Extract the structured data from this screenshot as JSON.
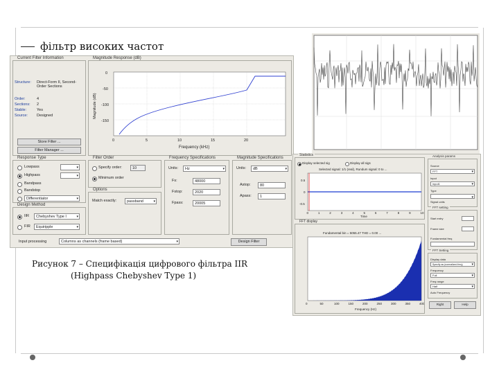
{
  "slide": {
    "title": "фільтр високих частот",
    "caption_line1": "Рисунок 7 – Специфікація цифрового фільтра IIR",
    "caption_line2": "(Highpass Chebyshev Type 1)"
  },
  "fdatool": {
    "current_filter": {
      "title": "Current Filter Information",
      "rows": [
        {
          "key": "Structure:",
          "value": "Direct-Form II, Second-Order Sections"
        },
        {
          "key": "Order:",
          "value": "4"
        },
        {
          "key": "Sections:",
          "value": "2"
        },
        {
          "key": "Stable:",
          "value": "Yes"
        },
        {
          "key": "Source:",
          "value": "Designed"
        }
      ],
      "store_button": "Store Filter ...",
      "manager_button": "Filter Manager ..."
    },
    "magnitude": {
      "title": "Magnitude Response (dB)",
      "ylabel": "Magnitude (dB)",
      "xlabel": "Frequency (kHz)",
      "yticks": [
        "0",
        "-50",
        "-100",
        "-150"
      ],
      "xticks": [
        "0",
        "5",
        "10",
        "15",
        "20"
      ]
    },
    "response_type": {
      "title": "Response Type",
      "options": [
        "Lowpass",
        "Highpass",
        "Bandpass",
        "Bandstop"
      ],
      "selected": "Highpass",
      "differentiator": "Differentiator"
    },
    "design_method": {
      "title": "Design Method",
      "iir_label": "IIR",
      "iir_value": "Chebyshev Type I",
      "fir_label": "FIR",
      "fir_value": "Equiripple"
    },
    "filter_order": {
      "title": "Filter Order",
      "specify_label": "Specify order:",
      "specify_value": "10",
      "minimum_label": "Minimum order"
    },
    "options": {
      "title": "Options",
      "match_label": "Match exactly:",
      "match_value": "passband"
    },
    "freq_spec": {
      "title": "Frequency Specifications",
      "units_label": "Units:",
      "units_value": "Hz",
      "fs_label": "Fs:",
      "fs_value": "48000",
      "fstop_label": "Fstop:",
      "fstop_value": "2020",
      "fpass_label": "Fpass:",
      "fpass_value": "20005"
    },
    "mag_spec": {
      "title": "Magnitude Specifications",
      "units_label": "Units:",
      "units_value": "dB",
      "astop_label": "Astop:",
      "astop_value": "80",
      "apass_label": "Apass:",
      "apass_value": "1"
    },
    "input_processing": {
      "label": "Input processing",
      "value": "Columns as channels (frame based)"
    },
    "design_button": "Design Filter"
  },
  "sptool": {
    "statistics_title": "Statistics",
    "display_opt1": "Display selected sig",
    "display_opt2": "Display all sigs",
    "info_line": "Selected signal: 1/1 (real), Rundum signal: 0 to ...",
    "time_yticks": [
      "0.5",
      "0",
      "-0.5"
    ],
    "time_xticks": [
      "0",
      "1",
      "2",
      "3",
      "4",
      "5",
      "6",
      "7",
      "8",
      "9",
      "10"
    ],
    "time_xlabel": "Time",
    "spectrum_title": "FFT display",
    "spectrum_info": "Fundamental bin = 5055.47 THD = 0.00 ...",
    "spec_xticks": [
      "0",
      "50",
      "100",
      "150",
      "200",
      "250",
      "300",
      "350",
      "400"
    ],
    "spec_xlabel": "Frequency (Hz)",
    "right_panels": [
      {
        "title": "Analysis params",
        "rows": [
          "Source",
          "Input",
          "Type",
          "Signal units"
        ]
      },
      {
        "title": "FFT setting",
        "rows": [
          "Start entry",
          "Frame size",
          "Fundamental freq"
        ]
      },
      {
        "title": "FFT Setting",
        "rows": [
          "Display data",
          "Frequency",
          "Freq range",
          "Auto Frequency"
        ]
      }
    ],
    "right_selects": [
      "FFT",
      "input1",
      "Specify as (normalized freq)",
      "Full",
      "Half"
    ],
    "buttons": [
      "Right",
      "Help"
    ]
  }
}
